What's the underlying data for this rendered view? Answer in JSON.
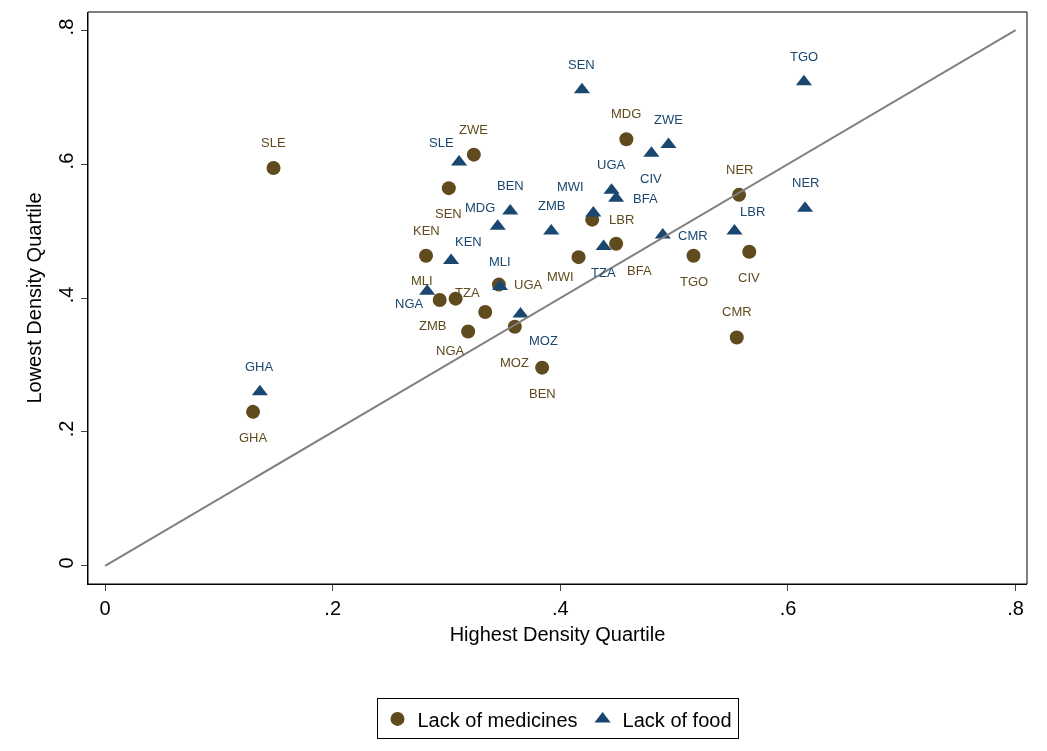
{
  "chart_data": {
    "type": "scatter",
    "xlabel": "Highest Density Quartile",
    "ylabel": "Lowest Density Quartile",
    "xlim": [
      -0.015,
      0.81
    ],
    "ylim": [
      -0.027,
      0.827
    ],
    "xticks": [
      {
        "value": 0,
        "label": "0"
      },
      {
        "value": 0.2,
        "label": ".2"
      },
      {
        "value": 0.4,
        "label": ".4"
      },
      {
        "value": 0.6,
        "label": ".6"
      },
      {
        "value": 0.8,
        "label": ".8"
      }
    ],
    "yticks": [
      {
        "value": 0,
        "label": "0"
      },
      {
        "value": 0.2,
        "label": ".2"
      },
      {
        "value": 0.4,
        "label": ".4"
      },
      {
        "value": 0.6,
        "label": ".6"
      },
      {
        "value": 0.8,
        "label": ".8"
      }
    ],
    "legend": "bottom",
    "series": [
      {
        "name": "Lack of medicines",
        "color": "#5f4b1e",
        "marker": "circle",
        "x": [
          0.13,
          0.148,
          0.324,
          0.302,
          0.282,
          0.294,
          0.308,
          0.334,
          0.319,
          0.346,
          0.36,
          0.384,
          0.416,
          0.428,
          0.449,
          0.458,
          0.517,
          0.557,
          0.566,
          0.555
        ],
        "values": [
          0.23,
          0.594,
          0.614,
          0.564,
          0.463,
          0.397,
          0.399,
          0.379,
          0.35,
          0.42,
          0.357,
          0.296,
          0.461,
          0.517,
          0.481,
          0.637,
          0.463,
          0.554,
          0.469,
          0.341
        ],
        "value_labels": [
          "GHA",
          "SLE",
          "ZWE",
          "SEN",
          "KEN",
          "MLI",
          "ZMB",
          "TZA",
          "NGA",
          "UGA",
          "MOZ",
          "BEN",
          "MWI",
          "LBR",
          "BFA",
          "MDG",
          "TGO",
          "NER",
          "CIV",
          "CMR"
        ]
      },
      {
        "name": "Lack of food",
        "color": "#1a476f",
        "marker": "triangle",
        "x": [
          0.136,
          0.283,
          0.304,
          0.311,
          0.345,
          0.356,
          0.347,
          0.365,
          0.392,
          0.419,
          0.429,
          0.445,
          0.449,
          0.438,
          0.48,
          0.495,
          0.49,
          0.553,
          0.615,
          0.614
        ],
        "values": [
          0.26,
          0.41,
          0.456,
          0.603,
          0.507,
          0.53,
          0.417,
          0.376,
          0.5,
          0.711,
          0.527,
          0.561,
          0.549,
          0.477,
          0.616,
          0.629,
          0.494,
          0.5,
          0.534,
          0.723
        ],
        "value_labels": [
          "GHA",
          "NGA",
          "KEN",
          "SLE",
          "MDG",
          "BEN",
          "MLI",
          "MOZ",
          "ZMB",
          "SEN",
          "MWI",
          "UGA",
          "BFA",
          "TZA",
          "CIV",
          "ZWE",
          "CMR",
          "LBR",
          "NER",
          "TGO"
        ]
      },
      {
        "type": "line",
        "color": "#808080",
        "x": [
          0,
          0.8
        ],
        "values": [
          0,
          0.8
        ]
      }
    ]
  }
}
